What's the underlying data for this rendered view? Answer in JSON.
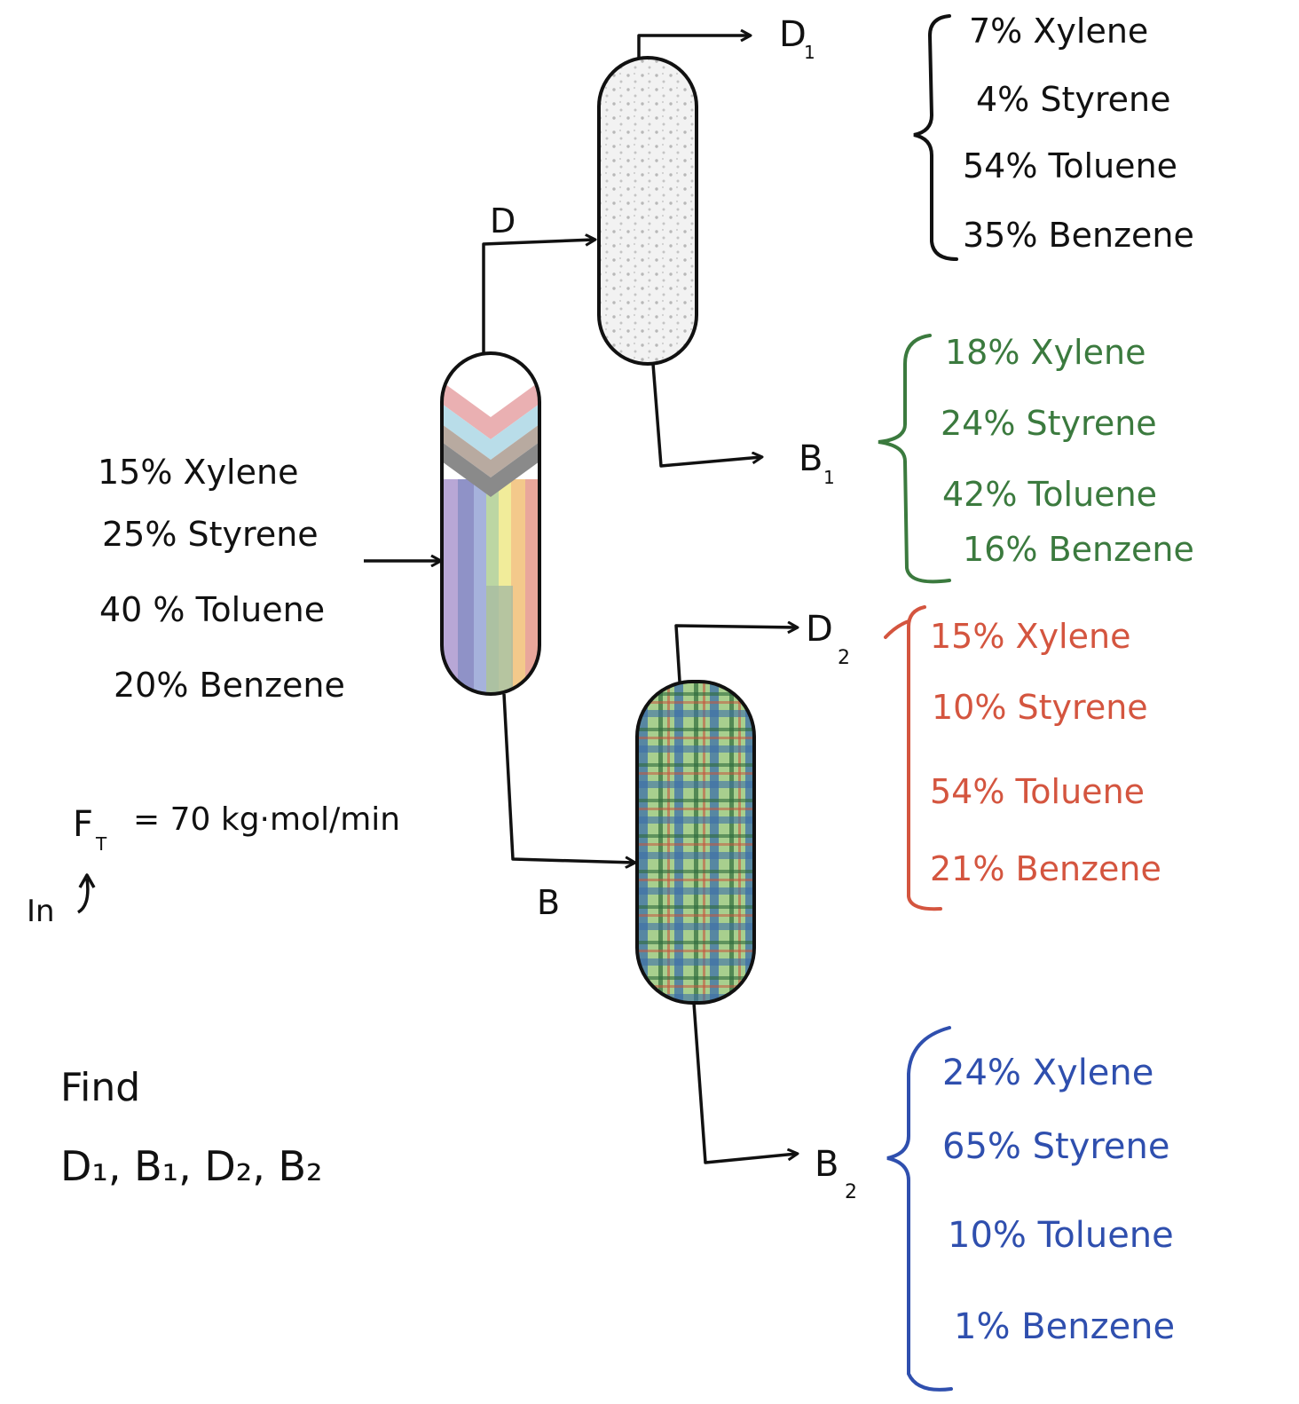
{
  "colors": {
    "ink": "#111111",
    "green": "#3b7a3e",
    "red": "#d4553f",
    "blue": "#2f4fae"
  },
  "feed": {
    "lines": [
      "15% Xylene",
      "25% Styrene",
      "40 % Toluene",
      "20% Benzene"
    ],
    "flow": "= 70  kg·mol/min",
    "flow_symbol": "F",
    "flow_subscript": "T",
    "in_label": "In"
  },
  "streams": {
    "d": "D",
    "b": "B",
    "d1": {
      "letter": "D",
      "sub": "1"
    },
    "b1": {
      "letter": "B",
      "sub": "1"
    },
    "d2": {
      "letter": "D",
      "sub": "2"
    },
    "b2": {
      "letter": "B",
      "sub": "2"
    }
  },
  "compositions": {
    "d1": [
      "7% Xylene",
      "4% Styrene",
      "54% Toluene",
      "35% Benzene"
    ],
    "b1": [
      "18% Xylene",
      "24% Styrene",
      "42% Toluene",
      "16% Benzene"
    ],
    "d2": [
      "15% Xylene",
      "10% Styrene",
      "54% Toluene",
      "21% Benzene"
    ],
    "b2": [
      "24% Xylene",
      "65% Styrene",
      "10% Toluene",
      "1% Benzene"
    ]
  },
  "find": {
    "title": "Find",
    "items": "D₁, B₁, D₂, B₂"
  }
}
